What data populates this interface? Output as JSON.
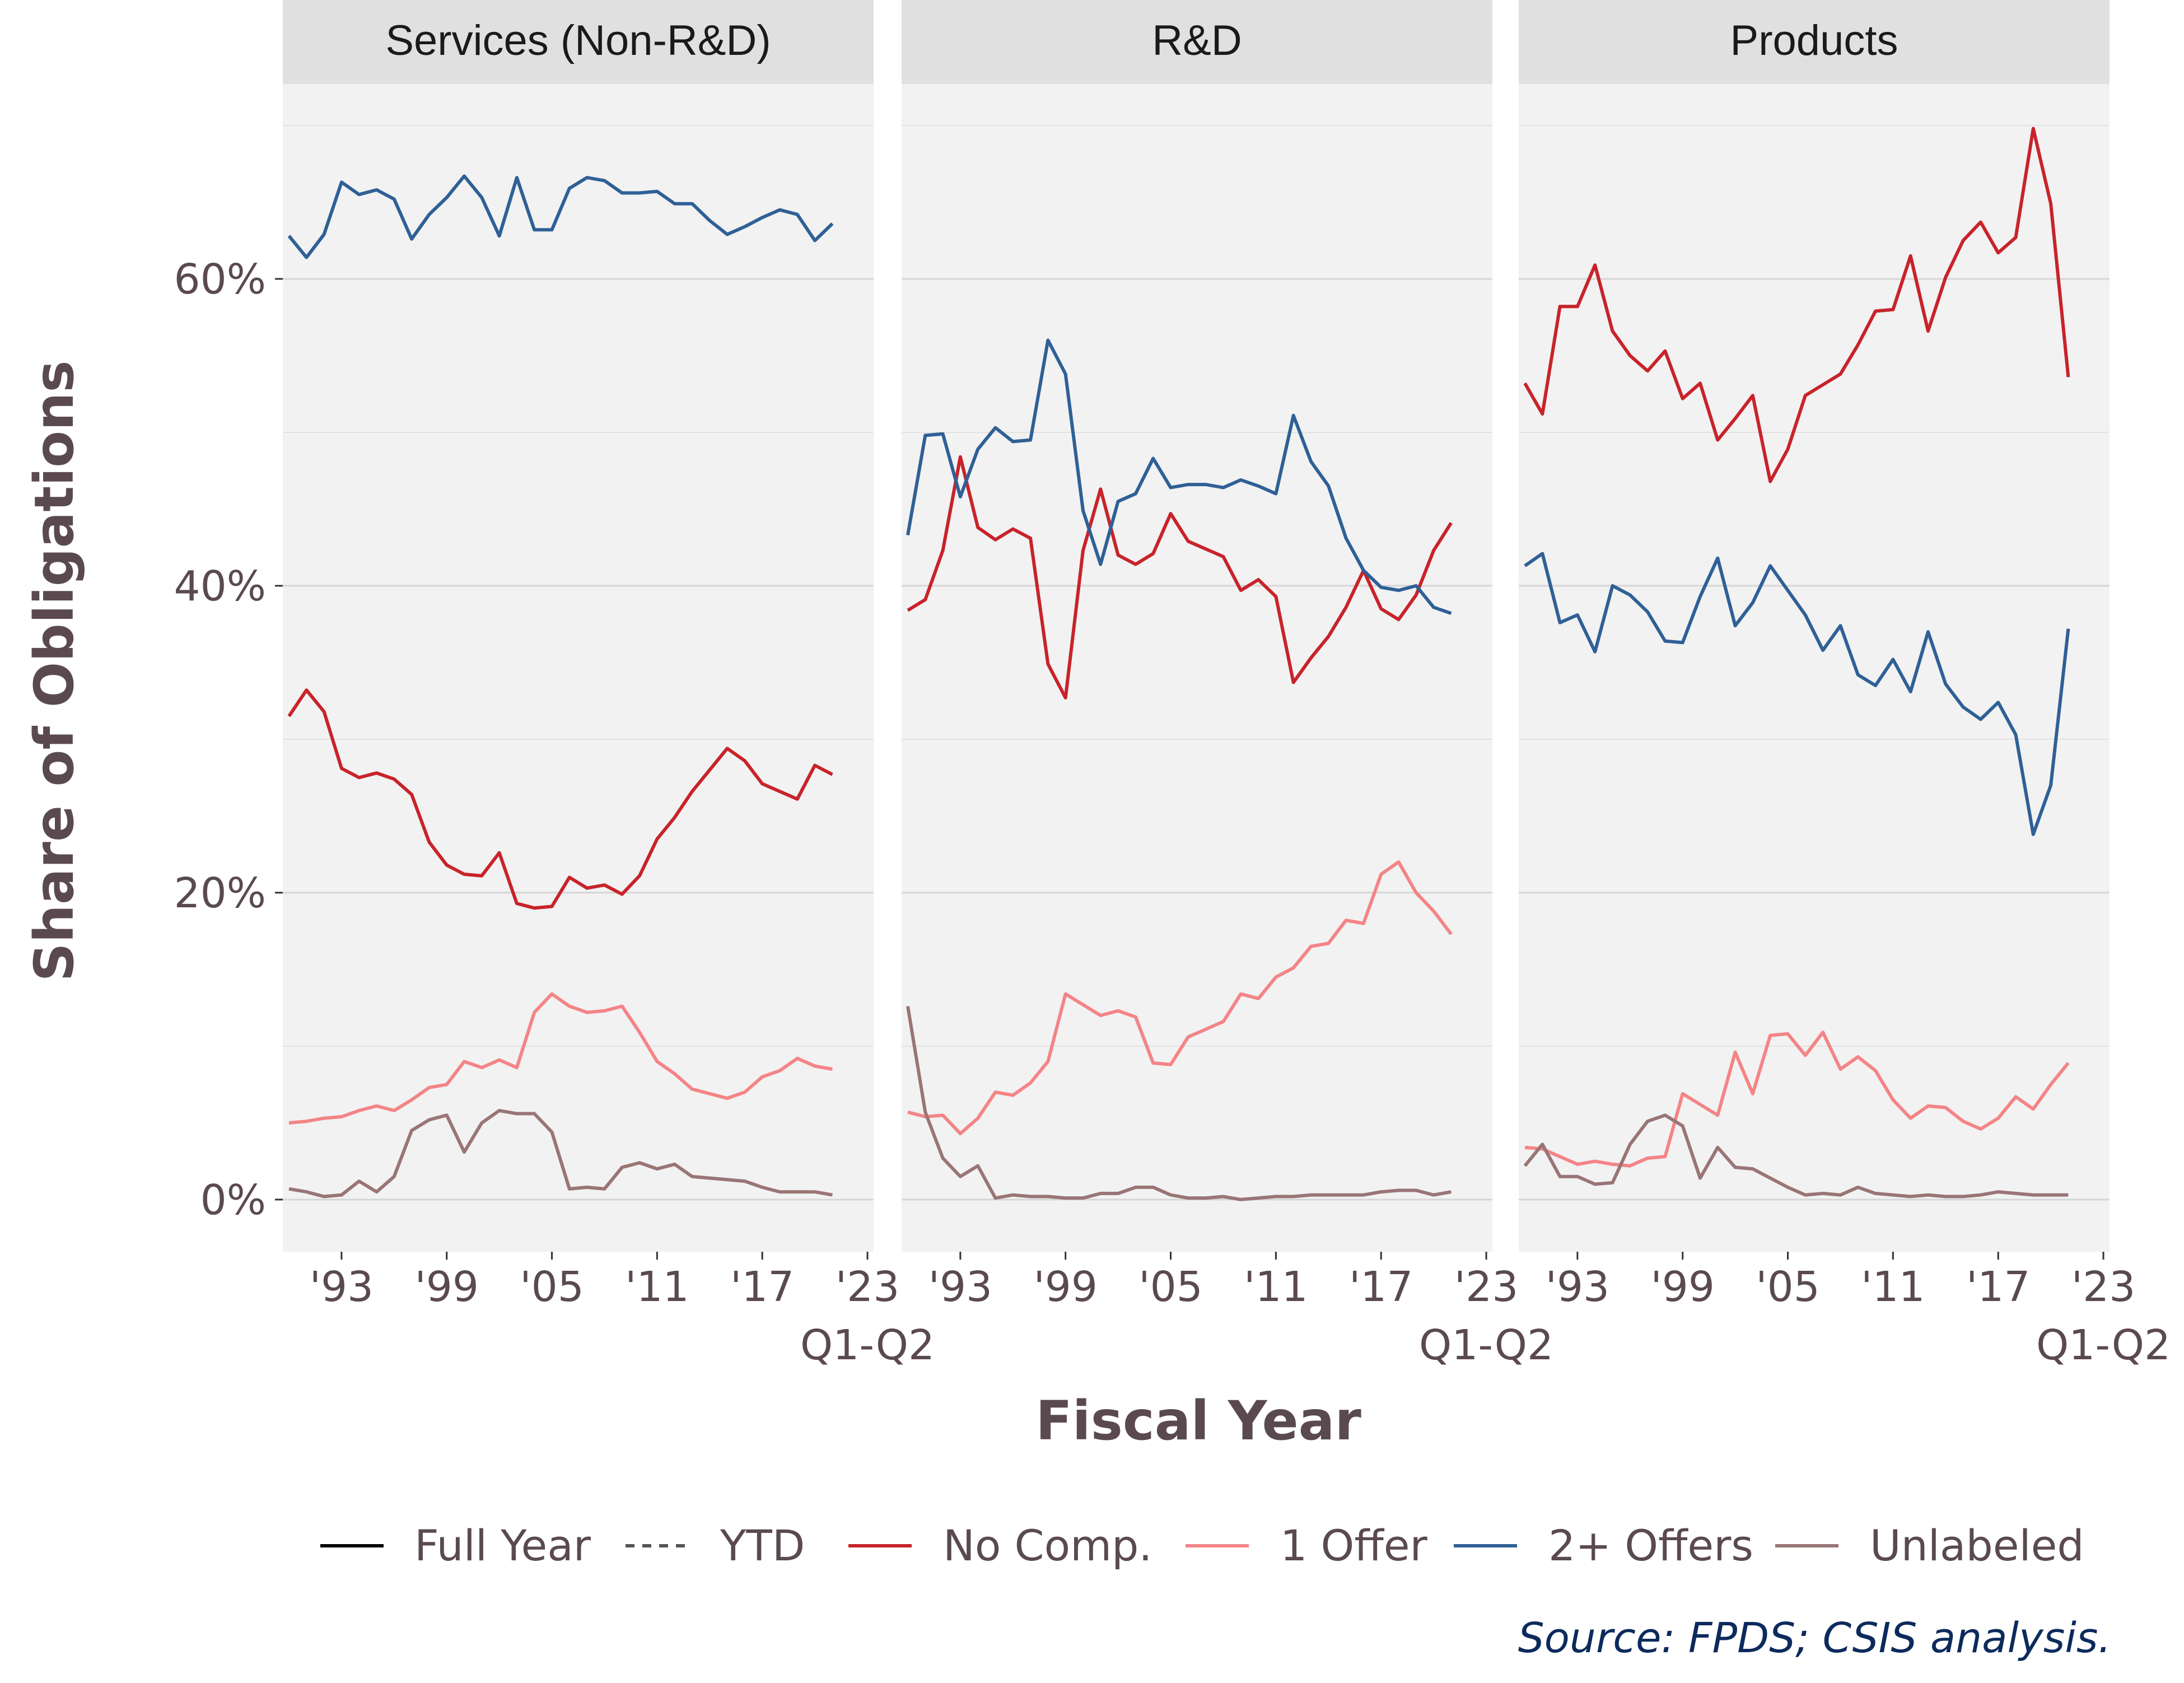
{
  "chart_data": {
    "type": "line",
    "panels": [
      "Services (Non-R&D)",
      "R&D",
      "Products"
    ],
    "xlabel": "Fiscal Year",
    "ylabel": "Share of Obligations",
    "x_tick_labels": [
      "'93",
      "'99",
      "'05",
      "'11",
      "'17",
      "'23"
    ],
    "x_tick_values": [
      1993,
      1999,
      2005,
      2011,
      2017,
      2023
    ],
    "x_extra_label": "Q1-Q2",
    "x_range": [
      1989.65,
      2023.35
    ],
    "y_ticks": [
      0,
      20,
      40,
      60
    ],
    "y_tick_labels": [
      "0%",
      "20%",
      "40%",
      "60%"
    ],
    "ylim": [
      -3.4,
      72.7
    ],
    "grid": true,
    "legend_position": "bottom",
    "legend_linetypes": [
      {
        "label": "Full Year",
        "color": "#000000",
        "dash": "solid"
      },
      {
        "label": "YTD",
        "color": "#555555",
        "dash": "dashed"
      }
    ],
    "series_styles": [
      {
        "name": "No Comp.",
        "color": "#c8232a"
      },
      {
        "name": "1 Offer",
        "color": "#f48486"
      },
      {
        "name": "2+ Offers",
        "color": "#2f6096"
      },
      {
        "name": "Unlabeled",
        "color": "#9a7575"
      }
    ],
    "x": [
      1990,
      1991,
      1992,
      1993,
      1994,
      1995,
      1996,
      1997,
      1998,
      1999,
      2000,
      2001,
      2002,
      2003,
      2004,
      2005,
      2006,
      2007,
      2008,
      2009,
      2010,
      2011,
      2012,
      2013,
      2014,
      2015,
      2016,
      2017,
      2018,
      2019,
      2020,
      2021,
      2022
    ],
    "data": [
      {
        "panel": "Services (Non-R&D)",
        "series": [
          {
            "name": "No Comp.",
            "values": [
              31.5,
              33.2,
              31.8,
              28.1,
              27.5,
              27.8,
              27.4,
              26.4,
              23.3,
              21.8,
              21.2,
              21.1,
              22.6,
              19.3,
              19.0,
              19.1,
              21.0,
              20.3,
              20.5,
              19.9,
              21.1,
              23.5,
              24.9,
              26.6,
              28.0,
              29.4,
              28.6,
              27.1,
              26.6,
              26.1,
              28.3,
              27.7,
              null
            ]
          },
          {
            "name": "1 Offer",
            "values": [
              5.0,
              5.1,
              5.3,
              5.4,
              5.8,
              6.1,
              5.8,
              6.5,
              7.3,
              7.5,
              9.0,
              8.6,
              9.1,
              8.6,
              12.2,
              13.4,
              12.6,
              12.2,
              12.3,
              12.6,
              10.9,
              9.0,
              8.2,
              7.2,
              6.9,
              6.6,
              7.0,
              8.0,
              8.4,
              9.2,
              8.7,
              8.5,
              null
            ]
          },
          {
            "name": "2+ Offers",
            "values": [
              62.8,
              61.4,
              62.9,
              66.3,
              65.5,
              65.8,
              65.2,
              62.6,
              64.2,
              65.3,
              66.7,
              65.3,
              62.8,
              66.6,
              63.2,
              63.2,
              65.9,
              66.6,
              66.4,
              65.6,
              65.6,
              65.7,
              64.9,
              64.9,
              63.8,
              62.9,
              63.4,
              64.0,
              64.5,
              64.2,
              62.5,
              63.6,
              null
            ]
          },
          {
            "name": "Unlabeled",
            "values": [
              0.7,
              0.5,
              0.2,
              0.3,
              1.2,
              0.5,
              1.5,
              4.5,
              5.2,
              5.5,
              3.1,
              5.0,
              5.8,
              5.6,
              5.6,
              4.4,
              0.7,
              0.8,
              0.7,
              2.1,
              2.4,
              2.0,
              2.3,
              1.5,
              1.4,
              1.3,
              1.2,
              0.8,
              0.5,
              0.5,
              0.5,
              0.3,
              null
            ]
          }
        ]
      },
      {
        "panel": "R&D",
        "series": [
          {
            "name": "No Comp.",
            "values": [
              38.4,
              39.1,
              42.3,
              48.4,
              43.8,
              43.0,
              43.7,
              43.1,
              34.9,
              32.7,
              42.3,
              46.3,
              42.0,
              41.4,
              42.1,
              44.7,
              42.9,
              42.4,
              41.9,
              39.7,
              40.4,
              39.3,
              33.7,
              35.3,
              36.7,
              38.6,
              41.0,
              38.5,
              37.8,
              39.4,
              42.3,
              44.1,
              null
            ]
          },
          {
            "name": "1 Offer",
            "values": [
              5.7,
              5.4,
              5.5,
              4.3,
              5.3,
              7.0,
              6.8,
              7.6,
              9.0,
              13.4,
              12.7,
              12.0,
              12.3,
              11.9,
              8.9,
              8.8,
              10.6,
              11.1,
              11.6,
              13.4,
              13.1,
              14.5,
              15.1,
              16.5,
              16.7,
              18.2,
              18.0,
              21.2,
              22.0,
              20.0,
              18.8,
              17.3,
              null
            ]
          },
          {
            "name": "2+ Offers",
            "values": [
              43.3,
              49.8,
              49.9,
              45.8,
              48.9,
              50.3,
              49.4,
              49.5,
              56.0,
              53.8,
              44.9,
              41.4,
              45.5,
              46.0,
              48.3,
              46.4,
              46.6,
              46.6,
              46.4,
              46.9,
              46.5,
              46.0,
              51.1,
              48.1,
              46.5,
              43.1,
              41.0,
              39.9,
              39.7,
              40.0,
              38.6,
              38.2,
              null
            ]
          },
          {
            "name": "Unlabeled",
            "values": [
              12.6,
              5.7,
              2.7,
              1.5,
              2.2,
              0.1,
              0.3,
              0.2,
              0.2,
              0.1,
              0.1,
              0.4,
              0.4,
              0.8,
              0.8,
              0.3,
              0.1,
              0.1,
              0.2,
              0.0,
              0.1,
              0.2,
              0.2,
              0.3,
              0.3,
              0.3,
              0.3,
              0.5,
              0.6,
              0.6,
              0.3,
              0.5,
              null
            ]
          }
        ]
      },
      {
        "panel": "Products",
        "series": [
          {
            "name": "No Comp.",
            "values": [
              53.2,
              51.2,
              58.2,
              58.2,
              60.9,
              56.6,
              55.0,
              54.0,
              55.3,
              52.2,
              53.2,
              49.5,
              50.9,
              52.4,
              46.8,
              48.9,
              52.4,
              53.1,
              53.8,
              55.7,
              57.9,
              58.0,
              61.5,
              56.6,
              60.1,
              62.5,
              63.7,
              61.7,
              62.7,
              69.8,
              64.9,
              53.6,
              null
            ]
          },
          {
            "name": "1 Offer",
            "values": [
              3.4,
              3.3,
              2.8,
              2.3,
              2.5,
              2.3,
              2.2,
              2.7,
              2.8,
              6.9,
              6.2,
              5.5,
              9.6,
              6.9,
              10.7,
              10.8,
              9.4,
              10.9,
              8.5,
              9.3,
              8.4,
              6.5,
              5.3,
              6.1,
              6.0,
              5.1,
              4.6,
              5.3,
              6.7,
              5.9,
              7.5,
              8.9,
              null
            ]
          },
          {
            "name": "2+ Offers",
            "values": [
              41.3,
              42.1,
              37.6,
              38.1,
              35.7,
              40.0,
              39.4,
              38.3,
              36.4,
              36.3,
              39.3,
              41.8,
              37.4,
              38.9,
              41.3,
              39.7,
              38.1,
              35.8,
              37.4,
              34.2,
              33.5,
              35.2,
              33.1,
              37.0,
              33.6,
              32.1,
              31.3,
              32.4,
              30.3,
              23.8,
              27.0,
              37.2,
              null
            ]
          },
          {
            "name": "Unlabeled",
            "values": [
              2.2,
              3.6,
              1.5,
              1.5,
              1.0,
              1.1,
              3.6,
              5.1,
              5.5,
              4.8,
              1.4,
              3.4,
              2.1,
              2.0,
              1.4,
              0.8,
              0.3,
              0.4,
              0.3,
              0.8,
              0.4,
              0.3,
              0.2,
              0.3,
              0.2,
              0.2,
              0.3,
              0.5,
              0.4,
              0.3,
              0.3,
              0.3,
              null
            ]
          }
        ]
      }
    ]
  },
  "legend": {
    "full_year": "Full Year",
    "ytd": "YTD",
    "no_comp": "No Comp.",
    "one_offer": "1 Offer",
    "two_plus": "2+ Offers",
    "unlabeled": "Unlabeled"
  },
  "source_note": "Source: FPDS; CSIS analysis."
}
